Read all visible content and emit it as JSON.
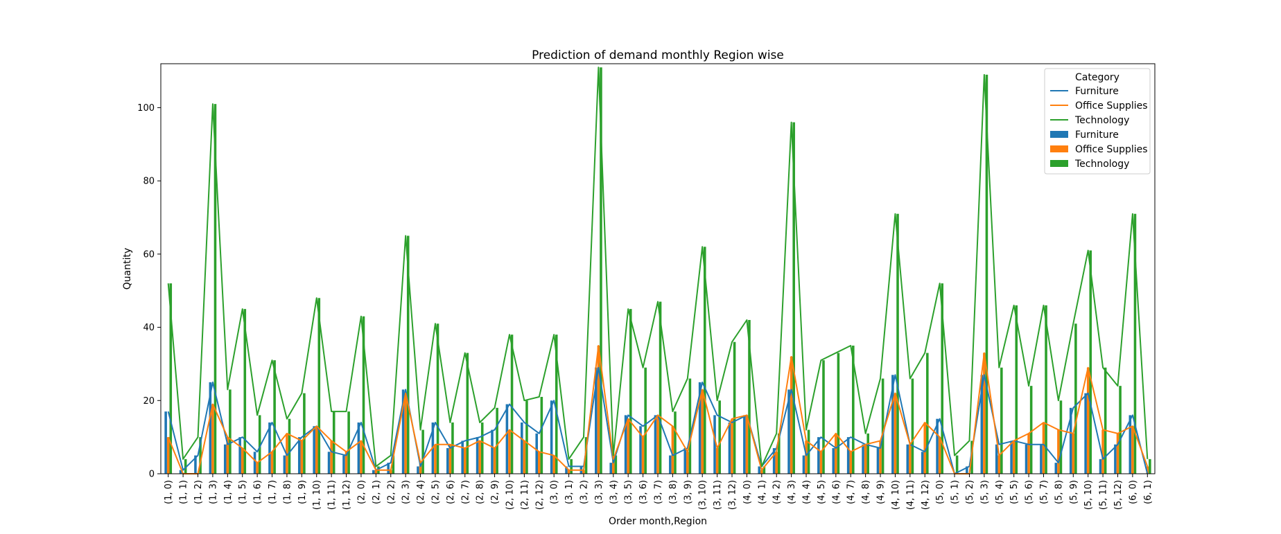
{
  "chart_data": {
    "type": "bar",
    "title": "Prediction of demand monthly Region wise",
    "xlabel": "Order month,Region",
    "ylabel": "Quantity",
    "ylim": [
      0,
      112
    ],
    "yticks": [
      0,
      20,
      40,
      60,
      80,
      100
    ],
    "grid": false,
    "legend_placement": "top-right",
    "legend_title": "Category",
    "legend_entries": [
      {
        "label": "Furniture",
        "kind": "line"
      },
      {
        "label": "Office Supplies",
        "kind": "line"
      },
      {
        "label": "Technology",
        "kind": "line"
      },
      {
        "label": "Furniture",
        "kind": "bar"
      },
      {
        "label": "Office Supplies",
        "kind": "bar"
      },
      {
        "label": "Technology",
        "kind": "bar"
      }
    ],
    "colors": {
      "Furniture": "#1f77b4",
      "Office Supplies": "#ff7f0e",
      "Technology": "#2ca02c"
    },
    "categories": [
      "(1, 0)",
      "(1, 1)",
      "(1, 2)",
      "(1, 3)",
      "(1, 4)",
      "(1, 5)",
      "(1, 6)",
      "(1, 7)",
      "(1, 8)",
      "(1, 9)",
      "(1, 10)",
      "(1, 11)",
      "(1, 12)",
      "(2, 0)",
      "(2, 1)",
      "(2, 2)",
      "(2, 3)",
      "(2, 4)",
      "(2, 5)",
      "(2, 6)",
      "(2, 7)",
      "(2, 8)",
      "(2, 9)",
      "(2, 10)",
      "(2, 11)",
      "(2, 12)",
      "(3, 0)",
      "(3, 1)",
      "(3, 2)",
      "(3, 3)",
      "(3, 4)",
      "(3, 5)",
      "(3, 6)",
      "(3, 7)",
      "(3, 8)",
      "(3, 9)",
      "(3, 10)",
      "(3, 11)",
      "(3, 12)",
      "(4, 0)",
      "(4, 1)",
      "(4, 2)",
      "(4, 3)",
      "(4, 4)",
      "(4, 5)",
      "(4, 6)",
      "(4, 7)",
      "(4, 8)",
      "(4, 9)",
      "(4, 10)",
      "(4, 11)",
      "(4, 12)",
      "(5, 0)",
      "(5, 1)",
      "(5, 2)",
      "(5, 3)",
      "(5, 4)",
      "(5, 5)",
      "(5, 6)",
      "(5, 7)",
      "(5, 8)",
      "(5, 9)",
      "(5, 10)",
      "(5, 11)",
      "(5, 12)",
      "(6, 0)",
      "(6, 1)"
    ],
    "series": [
      {
        "name": "Furniture",
        "values": [
          17,
          1,
          5,
          25,
          8,
          10,
          6,
          14,
          5,
          10,
          13,
          6,
          5,
          14,
          1,
          3,
          23,
          2,
          14,
          7,
          9,
          10,
          12,
          19,
          14,
          11,
          20,
          2,
          2,
          29,
          3,
          16,
          13,
          16,
          5,
          7,
          25,
          16,
          14,
          16,
          2,
          7,
          23,
          5,
          10,
          7,
          10,
          8,
          7,
          27,
          8,
          6,
          15,
          0,
          2,
          27,
          8,
          9,
          8,
          8,
          3,
          18,
          22,
          4,
          8,
          16,
          0
        ]
      },
      {
        "name": "Office Supplies",
        "values": [
          10,
          0,
          0,
          19,
          10,
          7,
          3,
          6,
          11,
          9,
          13,
          9,
          6,
          9,
          1,
          1,
          22,
          3,
          8,
          8,
          7,
          9,
          7,
          12,
          9,
          6,
          5,
          1,
          1,
          35,
          4,
          15,
          10,
          16,
          13,
          6,
          23,
          7,
          15,
          16,
          1,
          6,
          32,
          9,
          6,
          11,
          6,
          8,
          9,
          22,
          8,
          14,
          10,
          0,
          0,
          33,
          5,
          9,
          11,
          14,
          12,
          11,
          29,
          12,
          11,
          13,
          2
        ]
      },
      {
        "name": "Technology",
        "values": [
          52,
          4,
          10,
          101,
          23,
          45,
          16,
          31,
          15,
          22,
          48,
          17,
          17,
          43,
          2,
          5,
          65,
          12,
          41,
          14,
          33,
          14,
          18,
          38,
          20,
          21,
          38,
          4,
          10,
          111,
          5,
          45,
          29,
          47,
          17,
          26,
          62,
          20,
          36,
          42,
          2,
          11,
          96,
          12,
          31,
          33,
          35,
          11,
          26,
          71,
          26,
          33,
          52,
          5,
          9,
          109,
          29,
          46,
          24,
          46,
          20,
          41,
          61,
          29,
          24,
          71,
          4
        ]
      }
    ]
  }
}
